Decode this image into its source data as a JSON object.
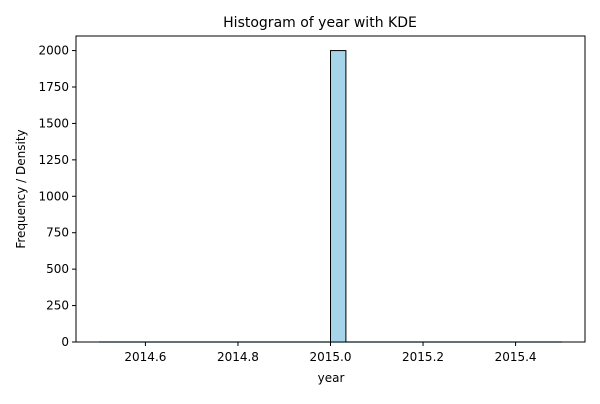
{
  "chart_data": {
    "type": "bar",
    "title": "Histogram of year with KDE",
    "xlabel": "year",
    "ylabel": "Frequency / Density",
    "xlim": [
      2014.45,
      2015.55
    ],
    "ylim": [
      0,
      2100
    ],
    "x_ticks": [
      2014.6,
      2014.8,
      2015.0,
      2015.2,
      2015.4
    ],
    "x_tick_labels": [
      "2014.6",
      "2014.8",
      "2015.0",
      "2015.2",
      "2015.4"
    ],
    "y_ticks": [
      0,
      250,
      500,
      750,
      1000,
      1250,
      1500,
      1750,
      2000
    ],
    "y_tick_labels": [
      "0",
      "250",
      "500",
      "750",
      "1000",
      "1250",
      "1500",
      "1750",
      "2000"
    ],
    "grid": false,
    "bins": [
      {
        "x0": 2015.0,
        "x1": 2015.0333,
        "value": 2000
      }
    ],
    "kde_line": {
      "x": [
        2014.5,
        2015.5
      ],
      "y": [
        0,
        0
      ]
    },
    "colors": {
      "bar_fill": "#a6d4e8",
      "bar_edge": "#000000",
      "kde_line": "#87c4dd",
      "axis": "#000000"
    }
  }
}
